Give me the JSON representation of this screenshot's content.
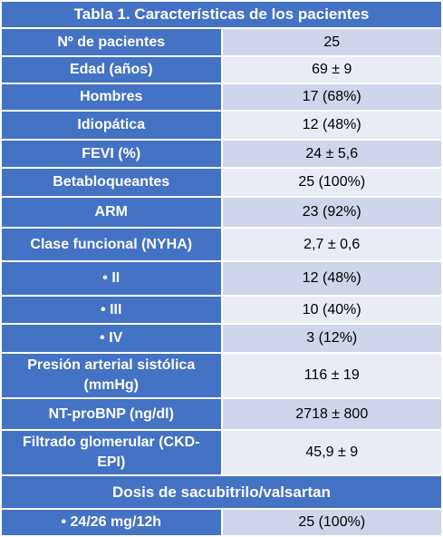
{
  "table": {
    "title": "Tabla 1. Características de los pacientes",
    "rows": [
      [
        "Nº de pacientes",
        "25"
      ],
      [
        "Edad (años)",
        "69 ± 9"
      ],
      [
        "Hombres",
        "17 (68%)"
      ],
      [
        "Idiopática",
        "12 (48%)"
      ],
      [
        "FEVI (%)",
        "24 ± 5,6"
      ],
      [
        "Betabloqueantes",
        "25 (100%)"
      ],
      [
        "ARM",
        "23 (92%)"
      ],
      [
        "Clase funcional (NYHA)",
        "2,7 ± 0,6"
      ],
      [
        "• II",
        "12 (48%)"
      ],
      [
        "• III",
        "10 (40%)"
      ],
      [
        "• IV",
        "3 (12%)"
      ],
      [
        "Presión arterial sistólica (mmHg)",
        "116 ± 19"
      ],
      [
        "NT-proBNP (ng/dl)",
        "2718 ± 800"
      ],
      [
        "Filtrado glomerular (CKD-EPI)",
        "45,9 ± 9"
      ]
    ],
    "section": "Dosis de sacubitrilo/valsartan",
    "section_rows": [
      [
        "• 24/26 mg/12h",
        "25 (100%)"
      ]
    ]
  }
}
